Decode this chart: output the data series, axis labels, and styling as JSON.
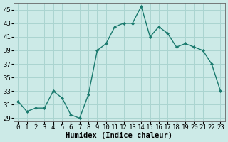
{
  "x": [
    0,
    1,
    2,
    3,
    4,
    5,
    6,
    7,
    8,
    9,
    10,
    11,
    12,
    13,
    14,
    15,
    16,
    17,
    18,
    19,
    20,
    21,
    22,
    23
  ],
  "y": [
    31.5,
    30.0,
    30.5,
    30.5,
    33.0,
    32.0,
    29.5,
    29.0,
    32.5,
    39.0,
    40.0,
    42.5,
    43.0,
    43.0,
    45.5,
    41.0,
    42.5,
    41.5,
    39.5,
    40.0,
    39.5,
    39.0,
    37.0,
    33.0
  ],
  "line_color": "#1a7a6e",
  "bg_color": "#cceae7",
  "grid_color": "#aad4d0",
  "xlabel": "Humidex (Indice chaleur)",
  "xlim": [
    -0.5,
    23.5
  ],
  "ylim": [
    28.5,
    46
  ],
  "yticks": [
    29,
    31,
    33,
    35,
    37,
    39,
    41,
    43,
    45
  ],
  "xtick_labels": [
    "0",
    "1",
    "2",
    "3",
    "4",
    "5",
    "6",
    "7",
    "8",
    "9",
    "10",
    "11",
    "12",
    "13",
    "14",
    "15",
    "16",
    "17",
    "18",
    "19",
    "20",
    "21",
    "22",
    "23"
  ],
  "marker": "D",
  "marker_size": 2.0,
  "line_width": 1.0,
  "xlabel_fontsize": 7.5,
  "tick_fontsize": 6.5
}
